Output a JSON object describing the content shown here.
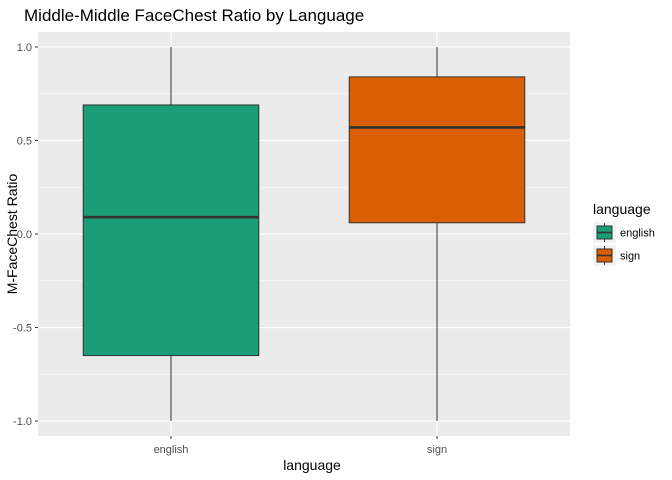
{
  "chart_data": {
    "type": "box",
    "title": "Middle-Middle FaceChest Ratio by Language",
    "xlabel": "language",
    "ylabel": "M-FaceChest Ratio",
    "categories": [
      "english",
      "sign"
    ],
    "ylim": [
      -1.08,
      1.08
    ],
    "y_ticks": [
      -1.0,
      -0.5,
      0.0,
      0.5,
      1.0
    ],
    "y_tick_labels": [
      "-1.0",
      "-0.5",
      "0.0",
      "0.5",
      "1.0"
    ],
    "grid": true,
    "legend": {
      "title": "language",
      "placement": "right",
      "entries": [
        "english",
        "sign"
      ]
    },
    "boxes": [
      {
        "category": "english",
        "min": -1.0,
        "q1": -0.65,
        "median": 0.09,
        "q3": 0.69,
        "max": 1.0,
        "color": "#1b9e77"
      },
      {
        "category": "sign",
        "min": -1.0,
        "q1": 0.06,
        "median": 0.57,
        "q3": 0.84,
        "max": 1.0,
        "color": "#d95f02"
      }
    ],
    "colors": {
      "panel": "#ebebeb",
      "grid_major": "#ffffff",
      "outline": "#333333"
    }
  }
}
